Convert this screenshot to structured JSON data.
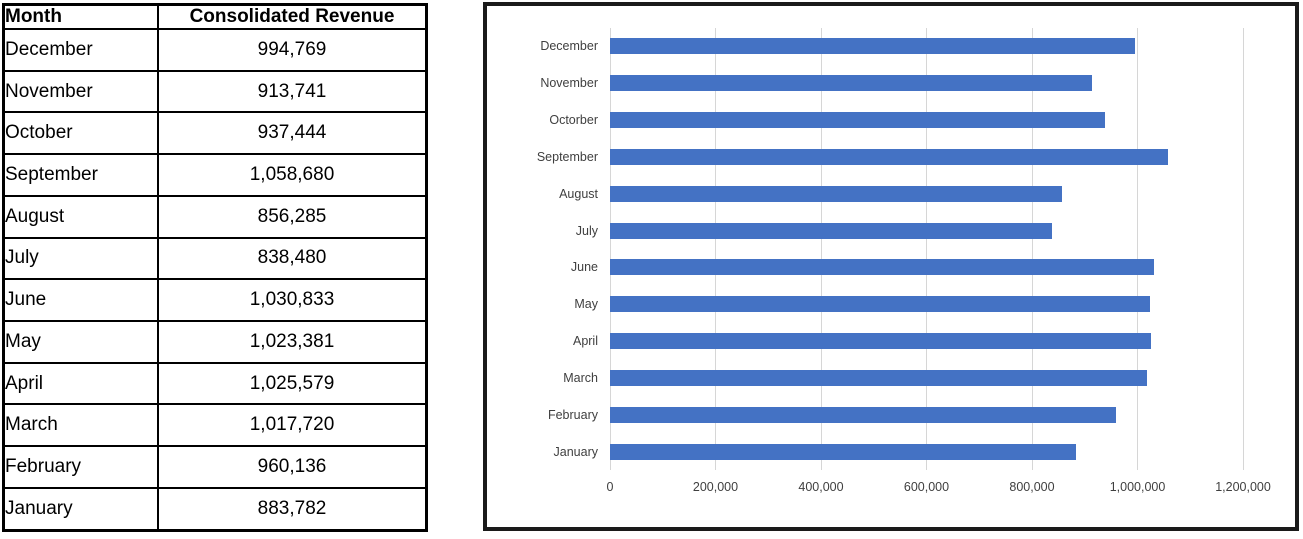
{
  "table": {
    "headers": [
      "Month",
      "Consolidated Revenue"
    ],
    "rows": [
      [
        "December",
        "994,769"
      ],
      [
        "November",
        "913,741"
      ],
      [
        "October",
        "937,444"
      ],
      [
        "September",
        "1,058,680"
      ],
      [
        "August",
        "856,285"
      ],
      [
        "July",
        "838,480"
      ],
      [
        "June",
        "1,030,833"
      ],
      [
        "May",
        "1,023,381"
      ],
      [
        "April",
        "1,025,579"
      ],
      [
        "March",
        "1,017,720"
      ],
      [
        "February",
        "960,136"
      ],
      [
        "January",
        "883,782"
      ]
    ]
  },
  "chart_data": {
    "type": "bar",
    "orientation": "horizontal",
    "title": "",
    "xlabel": "",
    "ylabel": "",
    "categories": [
      "December",
      "November",
      "Octorber",
      "September",
      "August",
      "July",
      "June",
      "May",
      "April",
      "March",
      "February",
      "January"
    ],
    "values": [
      994769,
      913741,
      937444,
      1058680,
      856285,
      838480,
      1030833,
      1023381,
      1025579,
      1017720,
      960136,
      883782
    ],
    "xlim": [
      0,
      1200000
    ],
    "xticks": [
      0,
      200000,
      400000,
      600000,
      800000,
      1000000,
      1200000
    ],
    "xtick_labels": [
      "0",
      "200,000",
      "400,000",
      "600,000",
      "800,000",
      "1,000,000",
      "1,200,000"
    ],
    "grid": true,
    "legend": false,
    "bar_color": "#4472C4",
    "gridline_color": "#d6d6d6",
    "label_color": "#3f3f3f"
  }
}
